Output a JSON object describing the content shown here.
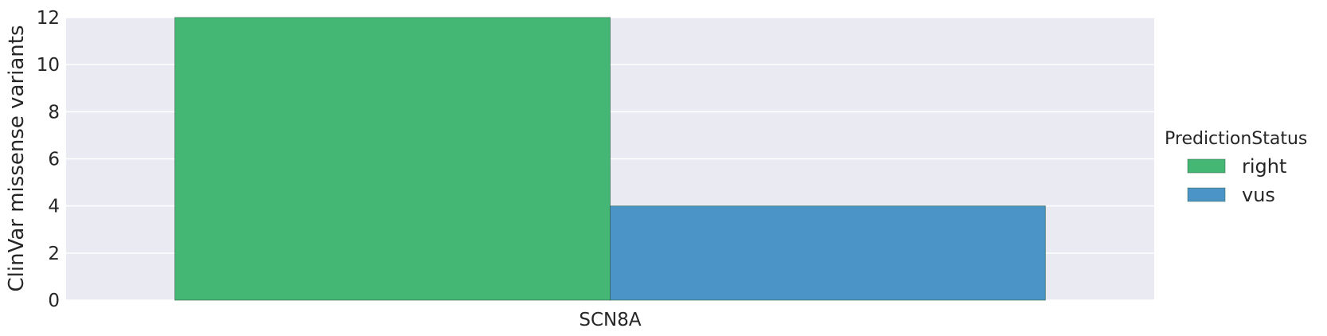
{
  "chart_data": {
    "type": "bar",
    "categories": [
      "SCN8A"
    ],
    "series": [
      {
        "name": "right",
        "values": [
          12
        ],
        "color": "#44b775"
      },
      {
        "name": "vus",
        "values": [
          4
        ],
        "color": "#4a94c7"
      }
    ],
    "title": "",
    "xlabel": "",
    "ylabel": "ClinVar missense variants",
    "ylim": [
      0,
      12
    ],
    "yticks": [
      "0",
      "2",
      "4",
      "6",
      "8",
      "10",
      "12"
    ],
    "grid": true,
    "plot_background": "#eaeaf2",
    "legend": {
      "title": "PredictionStatus",
      "placement": "right"
    }
  }
}
